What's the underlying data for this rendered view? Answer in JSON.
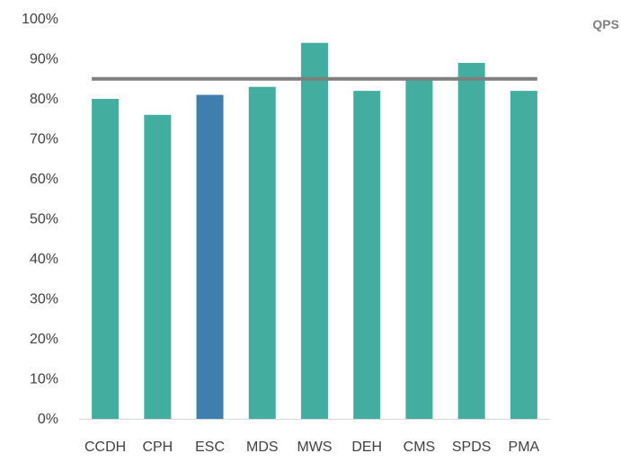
{
  "chart_data": {
    "type": "bar",
    "title": "",
    "xlabel": "",
    "ylabel": "",
    "ylim": [
      0,
      1
    ],
    "y_ticks": [
      "0%",
      "10%",
      "20%",
      "30%",
      "40%",
      "50%",
      "60%",
      "70%",
      "80%",
      "90%",
      "100%"
    ],
    "categories": [
      "CCDH",
      "CPH",
      "ESC",
      "MDS",
      "MWS",
      "DEH",
      "CMS",
      "SPDS",
      "PMA"
    ],
    "values": [
      0.8,
      0.76,
      0.81,
      0.83,
      0.94,
      0.82,
      0.85,
      0.89,
      0.82
    ],
    "highlight_category": "ESC",
    "reference_line": {
      "label": "QPS",
      "value": 0.85
    },
    "grid": false,
    "legend_position": "top-right",
    "colors": {
      "bar": "#43ADA0",
      "highlight": "#3E7FAE",
      "reference_line": "#7F7F7F",
      "axis": "#D9D9D9",
      "tick_text": "#404040"
    }
  }
}
